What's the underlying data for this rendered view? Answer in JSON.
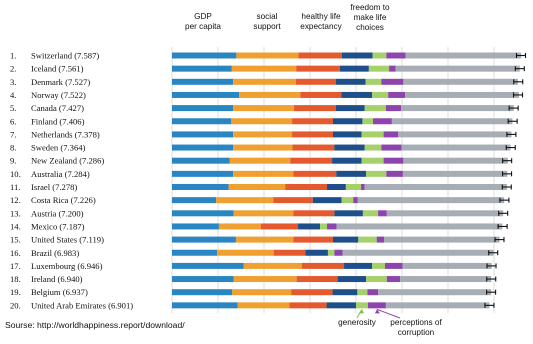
{
  "chart_data": {
    "type": "bar",
    "stacked": true,
    "orientation": "horizontal",
    "column_labels": [
      "GDP per capita",
      "social support",
      "healthy life expectancy",
      "freedom to make life choices"
    ],
    "callouts": [
      "generosity",
      "perceptions of corruption"
    ],
    "categories": [
      "1. Switzerland (7.587)",
      "2. Iceland (7.561)",
      "3. Denmark (7.527)",
      "4. Norway (7.522)",
      "5. Canada (7.427)",
      "6. Finland (7.406)",
      "7. Netherlands (7.378)",
      "8. Sweden (7.364)",
      "9. New Zealand (7.286)",
      "10. Australia (7.284)",
      "11. Israel (7.278)",
      "12. Costa Rica (7.226)",
      "13. Austria (7.200)",
      "14. Mexico (7.187)",
      "15. United States (7.119)",
      "16. Brazil (6.983)",
      "17. Luxembourg (6.946)",
      "18. Ireland (6.940)",
      "19. Belgium (6.937)",
      "20. United Arab Emirates (6.901)"
    ],
    "totals": [
      7.587,
      7.561,
      7.527,
      7.522,
      7.427,
      7.406,
      7.378,
      7.364,
      7.286,
      7.284,
      7.278,
      7.226,
      7.2,
      7.187,
      7.119,
      6.983,
      6.946,
      6.94,
      6.937,
      6.901
    ],
    "series": [
      {
        "name": "GDP per capita",
        "color": "#2a85c3",
        "values": [
          1.4,
          1.3,
          1.33,
          1.46,
          1.33,
          1.29,
          1.33,
          1.33,
          1.25,
          1.33,
          1.23,
          0.96,
          1.34,
          1.02,
          1.39,
          0.98,
          1.56,
          1.34,
          1.31,
          1.43
        ]
      },
      {
        "name": "social support",
        "color": "#f0a030",
        "values": [
          1.35,
          1.4,
          1.36,
          1.33,
          1.32,
          1.32,
          1.28,
          1.29,
          1.32,
          1.31,
          1.23,
          1.24,
          1.3,
          0.91,
          1.25,
          1.23,
          1.26,
          1.37,
          1.28,
          1.12
        ]
      },
      {
        "name": "healthy life expectancy",
        "color": "#e45a2e",
        "values": [
          0.94,
          0.95,
          0.87,
          0.89,
          0.91,
          0.89,
          0.89,
          0.91,
          0.91,
          0.93,
          0.91,
          0.86,
          0.89,
          0.81,
          0.86,
          0.69,
          0.92,
          0.89,
          0.9,
          0.81
        ]
      },
      {
        "name": "freedom to make life choices",
        "color": "#1f4f8a",
        "values": [
          0.67,
          0.63,
          0.65,
          0.67,
          0.63,
          0.64,
          0.62,
          0.66,
          0.64,
          0.65,
          0.41,
          0.63,
          0.62,
          0.48,
          0.55,
          0.49,
          0.61,
          0.62,
          0.54,
          0.64
        ]
      },
      {
        "name": "generosity",
        "color": "#a5d06a",
        "values": [
          0.3,
          0.44,
          0.34,
          0.35,
          0.46,
          0.23,
          0.48,
          0.36,
          0.48,
          0.44,
          0.33,
          0.25,
          0.33,
          0.15,
          0.4,
          0.14,
          0.28,
          0.45,
          0.22,
          0.26
        ]
      },
      {
        "name": "perceptions of corruption",
        "color": "#8e44ad",
        "values": [
          0.42,
          0.14,
          0.48,
          0.37,
          0.33,
          0.41,
          0.32,
          0.44,
          0.43,
          0.36,
          0.08,
          0.1,
          0.19,
          0.21,
          0.16,
          0.18,
          0.38,
          0.29,
          0.23,
          0.39
        ]
      },
      {
        "name": "residual",
        "color": "#a7adb4",
        "values": [
          2.51,
          2.7,
          2.49,
          2.47,
          2.45,
          2.62,
          2.46,
          2.37,
          2.27,
          2.27,
          3.09,
          3.18,
          2.53,
          3.6,
          2.51,
          3.28,
          1.94,
          1.98,
          2.46,
          2.25
        ]
      }
    ],
    "xlim": [
      0,
      8
    ],
    "grid": true,
    "error_bars": true,
    "source_text": "Sourse: http://worldhappiness.report/download/"
  }
}
